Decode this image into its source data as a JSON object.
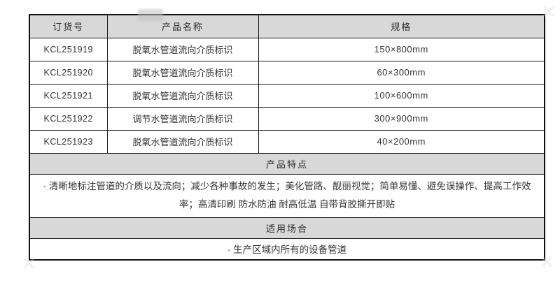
{
  "table": {
    "headers": [
      "订货号",
      "产品名称",
      "规格"
    ],
    "rows": [
      {
        "order_no": "KCL251919",
        "product_name": "脱氧水管道流向介质标识",
        "spec": "150×800mm"
      },
      {
        "order_no": "KCL251920",
        "product_name": "脱氧水管道流向介质标识",
        "spec": "60×300mm"
      },
      {
        "order_no": "KCL251921",
        "product_name": "脱氧水管道流向介质标识",
        "spec": "100×600mm"
      },
      {
        "order_no": "KCL251922",
        "product_name": "调节水管道流向介质标识",
        "spec": "300×900mm"
      },
      {
        "order_no": "KCL251923",
        "product_name": "脱氧水管道流向介质标识",
        "spec": "40×200mm"
      }
    ],
    "features_title": "产品特点",
    "features_text": "· 清晰地标注管道的介质以及流向；减少各种事故的发生；美化管路、靓丽视觉；简单易懂、避免误操作、提高工作效率；高清印刷 防水防油 耐高低温 自带背胶撕开即贴",
    "occasions_title": "适用场合",
    "occasions_text": "· 生产区域内所有的设备管道"
  },
  "colors": {
    "header_bg": "#d8d8d8",
    "border": "#1c1c1c",
    "text": "#333333"
  }
}
